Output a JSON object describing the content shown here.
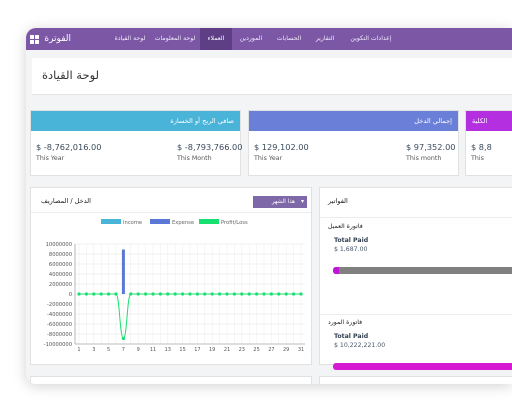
{
  "nav": {
    "brand": "الفوترة",
    "items": [
      {
        "label": "لوحة القيادة",
        "active": false
      },
      {
        "label": "لوحة المعلومات",
        "active": false
      },
      {
        "label": "العملاء",
        "active": true
      },
      {
        "label": "الموردين",
        "active": false
      },
      {
        "label": "الحسابات",
        "active": false
      },
      {
        "label": "التقارير",
        "active": false
      },
      {
        "label": "إعدادات التكوين",
        "active": false
      }
    ]
  },
  "page": {
    "title": "لوحة القيادة"
  },
  "cards": [
    {
      "title": "صافي الربح أو الخسارة",
      "color": "#4ab3d8",
      "year_value": "$ -8,762,016.00",
      "year_label": "This Year",
      "month_value": "$ -8,793,766.00",
      "month_label": "This Month"
    },
    {
      "title": "إجمالي الدخل",
      "color": "#6a7fd8",
      "year_value": "$ 129,102.00",
      "year_label": "This Year",
      "month_value": "$ 97,352.00",
      "month_label": "This month"
    },
    {
      "title": "الكلية",
      "color": "#b42fe0",
      "year_value": "$ 8,8",
      "year_label": "This",
      "month_value": "",
      "month_label": ""
    }
  ],
  "income_expense": {
    "title": "الدخل / المصاريف",
    "period_select": "هذا الشهر"
  },
  "chart_data": {
    "type": "line",
    "x": [
      1,
      2,
      3,
      4,
      5,
      6,
      7,
      8,
      9,
      10,
      11,
      12,
      13,
      14,
      15,
      16,
      17,
      18,
      19,
      20,
      21,
      22,
      23,
      24,
      25,
      26,
      27,
      28,
      29,
      30,
      31
    ],
    "x_ticks": [
      "1",
      "3",
      "5",
      "7",
      "9",
      "11",
      "13",
      "15",
      "17",
      "19",
      "21",
      "23",
      "25",
      "27",
      "29",
      "31"
    ],
    "y_ticks": [
      "10000000",
      "8000000",
      "6000000",
      "4000000",
      "2000000",
      "0",
      "-2000000",
      "-4000000",
      "-6000000",
      "-8000000",
      "-10000000"
    ],
    "ylim": [
      -10000000,
      10000000
    ],
    "grid": true,
    "legend_position": "top",
    "series": [
      {
        "name": "Income",
        "kind": "bar",
        "color": "#4ab3d8",
        "values": [
          0,
          0,
          0,
          0,
          0,
          0,
          0,
          0,
          0,
          0,
          0,
          0,
          0,
          0,
          0,
          0,
          0,
          0,
          0,
          0,
          0,
          0,
          0,
          0,
          0,
          0,
          0,
          0,
          0,
          0,
          0
        ]
      },
      {
        "name": "Expense",
        "kind": "bar",
        "color": "#5b78d6",
        "values": [
          0,
          0,
          0,
          0,
          0,
          0,
          8900000,
          0,
          0,
          0,
          0,
          0,
          0,
          0,
          0,
          0,
          0,
          0,
          0,
          0,
          0,
          0,
          0,
          0,
          0,
          0,
          0,
          0,
          0,
          0,
          0
        ]
      },
      {
        "name": "Profit/Loss",
        "kind": "line",
        "color": "#18e070",
        "values": [
          0,
          0,
          0,
          0,
          0,
          0,
          -8900000,
          0,
          0,
          0,
          0,
          0,
          0,
          0,
          0,
          0,
          0,
          0,
          0,
          0,
          0,
          0,
          0,
          0,
          0,
          0,
          0,
          0,
          0,
          0,
          0
        ]
      }
    ]
  },
  "invoices": {
    "title": "الفواتير",
    "customer": {
      "label": "فاتورة العميل",
      "total_label": "Total Paid",
      "total_value": "$ 1,687.00",
      "bar_color": "#808080",
      "accent_color": "#c015d6",
      "paid_fraction": 0.03
    },
    "supplier": {
      "label": "فاتورة المورد",
      "total_label": "Total Paid",
      "total_value": "$ 10,222,221.00",
      "bar_color": "#d61ad2",
      "paid_fraction": 1.0
    }
  }
}
